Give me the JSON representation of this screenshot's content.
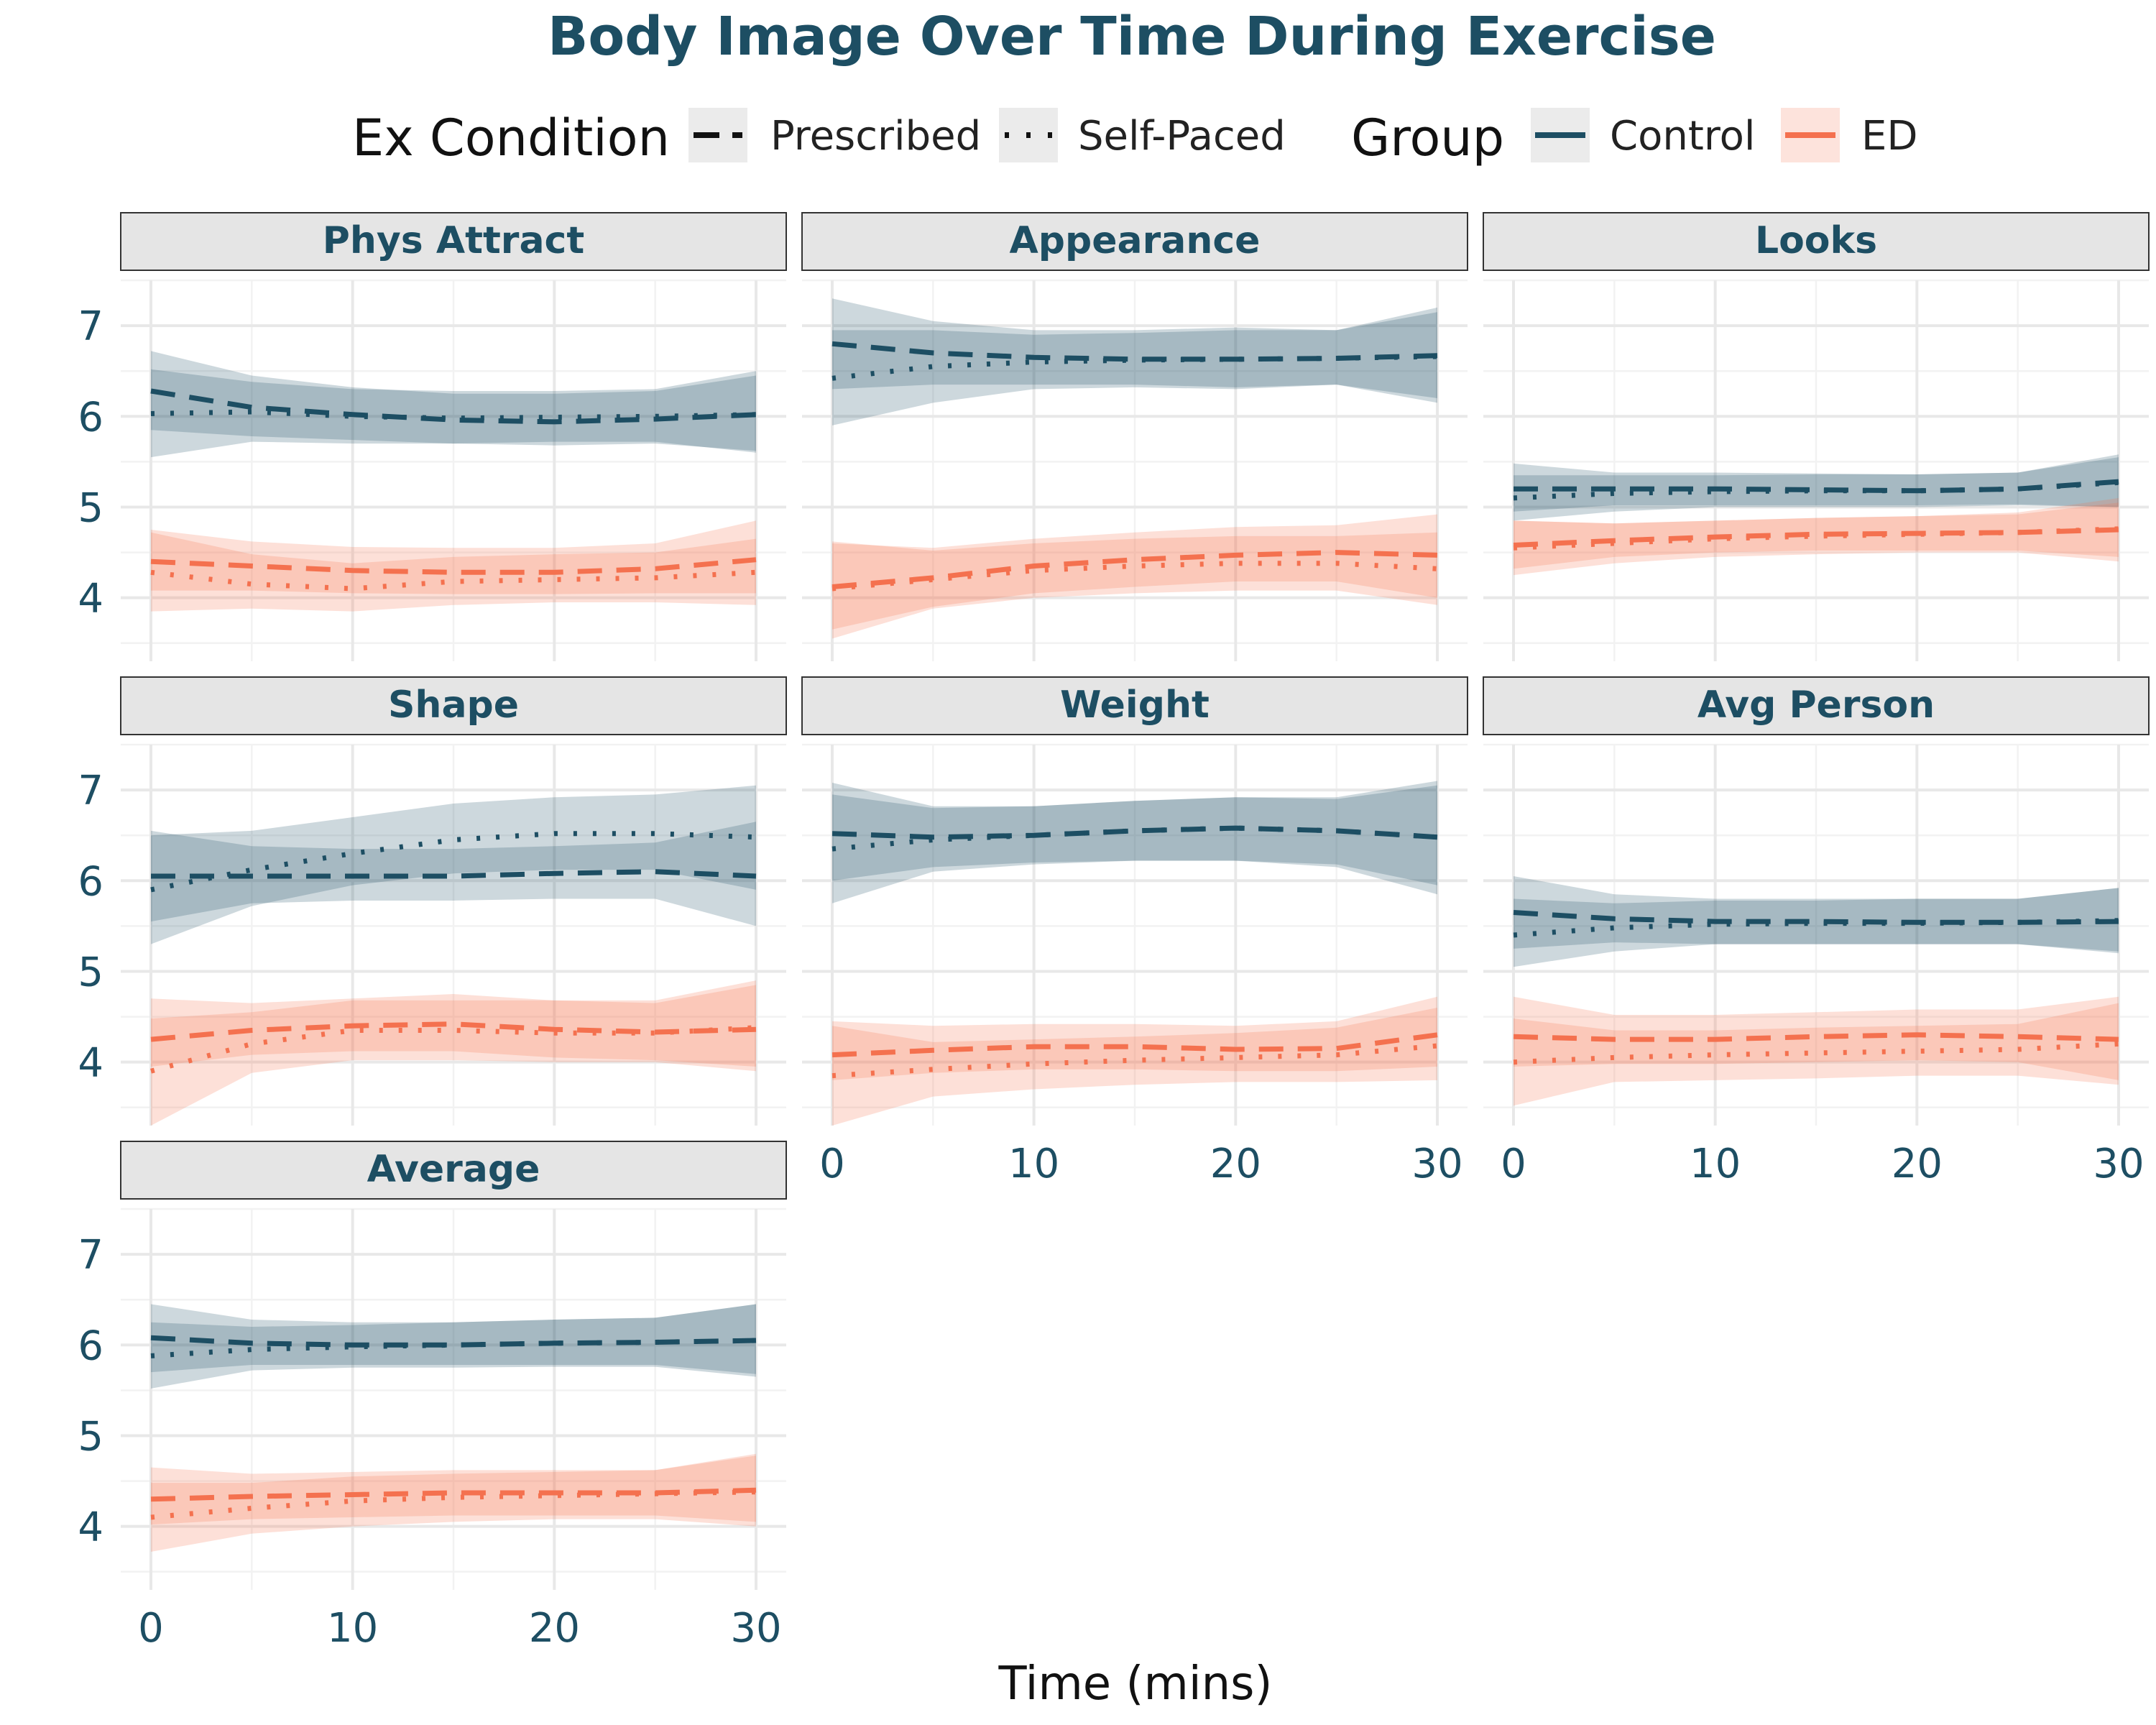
{
  "chart_data": {
    "type": "line",
    "title": "Body Image Over Time During Exercise",
    "xlabel": "Time (mins)",
    "ylabel": "",
    "xlim": [
      0,
      30
    ],
    "ylim": [
      3.3,
      7.5
    ],
    "x_ticks": [
      0,
      10,
      20,
      30
    ],
    "y_ticks": [
      4,
      5,
      6,
      7
    ],
    "x_tick_labels": [
      "0",
      "10",
      "20",
      "30"
    ],
    "y_tick_labels": [
      "4",
      "5",
      "6",
      "7"
    ],
    "grid": true,
    "legend_placement": "top",
    "colors": {
      "Control": "#1d4e63",
      "ED": "#f4714f"
    },
    "legend": {
      "condition": {
        "title": "Ex Condition",
        "items": [
          {
            "label": "Prescribed",
            "line": "dashed"
          },
          {
            "label": "Self-Paced",
            "line": "dotted"
          }
        ]
      },
      "group": {
        "title": "Group",
        "items": [
          {
            "label": "Control",
            "color": "#1d4e63"
          },
          {
            "label": "ED",
            "color": "#f4714f"
          }
        ]
      }
    },
    "x": [
      0,
      5,
      10,
      15,
      20,
      25,
      30
    ],
    "panels": [
      {
        "name": "Phys Attract",
        "series": [
          {
            "group": "Control",
            "condition": "Prescribed",
            "values": [
              6.28,
              6.1,
              6.02,
              5.96,
              5.94,
              5.97,
              6.02
            ],
            "lower": [
              5.85,
              5.78,
              5.74,
              5.7,
              5.68,
              5.7,
              5.62
            ],
            "upper": [
              6.72,
              6.45,
              6.32,
              6.25,
              6.25,
              6.28,
              6.45
            ]
          },
          {
            "group": "Control",
            "condition": "Self-Paced",
            "values": [
              6.03,
              6.05,
              6.0,
              5.98,
              5.99,
              6.0,
              6.02
            ],
            "lower": [
              5.55,
              5.72,
              5.7,
              5.7,
              5.72,
              5.72,
              5.6
            ],
            "upper": [
              6.52,
              6.38,
              6.3,
              6.28,
              6.28,
              6.3,
              6.5
            ]
          },
          {
            "group": "ED",
            "condition": "Prescribed",
            "values": [
              4.4,
              4.35,
              4.3,
              4.28,
              4.28,
              4.32,
              4.42
            ],
            "lower": [
              4.08,
              4.08,
              4.05,
              4.04,
              4.04,
              4.05,
              4.05
            ],
            "upper": [
              4.75,
              4.62,
              4.56,
              4.55,
              4.55,
              4.6,
              4.85
            ]
          },
          {
            "group": "ED",
            "condition": "Self-Paced",
            "values": [
              4.28,
              4.15,
              4.1,
              4.18,
              4.2,
              4.22,
              4.28
            ],
            "lower": [
              3.85,
              3.88,
              3.85,
              3.92,
              3.95,
              3.95,
              3.92
            ],
            "upper": [
              4.72,
              4.48,
              4.38,
              4.45,
              4.48,
              4.5,
              4.65
            ]
          }
        ]
      },
      {
        "name": "Appearance",
        "series": [
          {
            "group": "Control",
            "condition": "Prescribed",
            "values": [
              6.8,
              6.7,
              6.65,
              6.63,
              6.63,
              6.64,
              6.67
            ],
            "lower": [
              6.3,
              6.35,
              6.35,
              6.35,
              6.32,
              6.35,
              6.15
            ],
            "upper": [
              7.3,
              7.05,
              6.95,
              6.95,
              6.98,
              6.95,
              7.2
            ]
          },
          {
            "group": "Control",
            "condition": "Self-Paced",
            "values": [
              6.42,
              6.55,
              6.6,
              6.62,
              6.63,
              6.64,
              6.66
            ],
            "lower": [
              5.9,
              6.15,
              6.3,
              6.32,
              6.3,
              6.35,
              6.2
            ],
            "upper": [
              6.95,
              6.95,
              6.9,
              6.92,
              6.95,
              6.95,
              7.15
            ]
          },
          {
            "group": "ED",
            "condition": "Prescribed",
            "values": [
              4.12,
              4.22,
              4.35,
              4.42,
              4.47,
              4.5,
              4.47
            ],
            "lower": [
              3.65,
              3.9,
              4.05,
              4.12,
              4.18,
              4.18,
              4.0
            ],
            "upper": [
              4.6,
              4.55,
              4.65,
              4.72,
              4.78,
              4.8,
              4.92
            ]
          },
          {
            "group": "ED",
            "condition": "Self-Paced",
            "values": [
              4.1,
              4.2,
              4.3,
              4.35,
              4.38,
              4.38,
              4.32
            ],
            "lower": [
              3.55,
              3.88,
              4.0,
              4.05,
              4.08,
              4.08,
              3.92
            ],
            "upper": [
              4.62,
              4.52,
              4.6,
              4.65,
              4.68,
              4.68,
              4.72
            ]
          }
        ]
      },
      {
        "name": "Looks",
        "series": [
          {
            "group": "Control",
            "condition": "Prescribed",
            "values": [
              5.2,
              5.2,
              5.2,
              5.19,
              5.18,
              5.2,
              5.28
            ],
            "lower": [
              4.95,
              5.02,
              5.02,
              5.02,
              5.02,
              5.03,
              5.0
            ],
            "upper": [
              5.48,
              5.38,
              5.38,
              5.37,
              5.36,
              5.38,
              5.55
            ]
          },
          {
            "group": "Control",
            "condition": "Self-Paced",
            "values": [
              5.1,
              5.15,
              5.17,
              5.18,
              5.18,
              5.2,
              5.27
            ],
            "lower": [
              4.85,
              4.95,
              5.0,
              5.0,
              5.0,
              5.02,
              5.0
            ],
            "upper": [
              5.35,
              5.35,
              5.35,
              5.36,
              5.36,
              5.38,
              5.58
            ]
          },
          {
            "group": "ED",
            "condition": "Prescribed",
            "values": [
              4.58,
              4.63,
              4.67,
              4.7,
              4.71,
              4.72,
              4.75
            ],
            "lower": [
              4.32,
              4.45,
              4.5,
              4.52,
              4.52,
              4.52,
              4.45
            ],
            "upper": [
              4.85,
              4.82,
              4.85,
              4.88,
              4.9,
              4.92,
              5.05
            ]
          },
          {
            "group": "ED",
            "condition": "Self-Paced",
            "values": [
              4.55,
              4.6,
              4.65,
              4.68,
              4.7,
              4.72,
              4.76
            ],
            "lower": [
              4.25,
              4.38,
              4.45,
              4.48,
              4.5,
              4.5,
              4.4
            ],
            "upper": [
              4.85,
              4.82,
              4.85,
              4.88,
              4.9,
              4.94,
              5.1
            ]
          }
        ]
      },
      {
        "name": "Shape",
        "series": [
          {
            "group": "Control",
            "condition": "Prescribed",
            "values": [
              6.05,
              6.05,
              6.05,
              6.05,
              6.08,
              6.1,
              6.05
            ],
            "lower": [
              5.55,
              5.75,
              5.78,
              5.78,
              5.8,
              5.8,
              5.5
            ],
            "upper": [
              6.55,
              6.38,
              6.35,
              6.35,
              6.38,
              6.42,
              6.65
            ]
          },
          {
            "group": "Control",
            "condition": "Self-Paced",
            "values": [
              5.9,
              6.12,
              6.3,
              6.45,
              6.52,
              6.52,
              6.48
            ],
            "lower": [
              5.3,
              5.72,
              5.95,
              6.08,
              6.12,
              6.12,
              5.9
            ],
            "upper": [
              6.5,
              6.55,
              6.7,
              6.85,
              6.92,
              6.95,
              7.05
            ]
          },
          {
            "group": "ED",
            "condition": "Prescribed",
            "values": [
              4.25,
              4.35,
              4.4,
              4.42,
              4.36,
              4.33,
              4.36
            ],
            "lower": [
              3.95,
              4.08,
              4.12,
              4.12,
              4.05,
              4.02,
              3.95
            ],
            "upper": [
              4.7,
              4.65,
              4.7,
              4.75,
              4.68,
              4.65,
              4.85
            ]
          },
          {
            "group": "ED",
            "condition": "Self-Paced",
            "values": [
              3.9,
              4.2,
              4.35,
              4.35,
              4.32,
              4.32,
              4.38
            ],
            "lower": [
              3.3,
              3.88,
              4.02,
              4.02,
              4.0,
              4.0,
              3.9
            ],
            "upper": [
              4.48,
              4.55,
              4.68,
              4.68,
              4.68,
              4.68,
              4.9
            ]
          }
        ]
      },
      {
        "name": "Weight",
        "series": [
          {
            "group": "Control",
            "condition": "Prescribed",
            "values": [
              6.52,
              6.48,
              6.5,
              6.55,
              6.58,
              6.55,
              6.48
            ],
            "lower": [
              6.0,
              6.15,
              6.2,
              6.22,
              6.22,
              6.18,
              5.95
            ],
            "upper": [
              7.08,
              6.82,
              6.82,
              6.88,
              6.92,
              6.9,
              7.05
            ]
          },
          {
            "group": "Control",
            "condition": "Self-Paced",
            "values": [
              6.35,
              6.45,
              6.5,
              6.55,
              6.58,
              6.55,
              6.48
            ],
            "lower": [
              5.75,
              6.1,
              6.18,
              6.22,
              6.22,
              6.15,
              5.85
            ],
            "upper": [
              6.95,
              6.8,
              6.82,
              6.88,
              6.92,
              6.92,
              7.1
            ]
          },
          {
            "group": "ED",
            "condition": "Prescribed",
            "values": [
              4.08,
              4.13,
              4.17,
              4.17,
              4.14,
              4.15,
              4.3
            ],
            "lower": [
              3.8,
              3.88,
              3.92,
              3.92,
              3.9,
              3.9,
              3.95
            ],
            "upper": [
              4.45,
              4.4,
              4.42,
              4.42,
              4.4,
              4.45,
              4.72
            ]
          },
          {
            "group": "ED",
            "condition": "Self-Paced",
            "values": [
              3.85,
              3.92,
              3.98,
              4.02,
              4.05,
              4.08,
              4.18
            ],
            "lower": [
              3.3,
              3.62,
              3.7,
              3.75,
              3.78,
              3.78,
              3.8
            ],
            "upper": [
              4.4,
              4.22,
              4.25,
              4.28,
              4.32,
              4.38,
              4.6
            ]
          }
        ]
      },
      {
        "name": "Avg Person",
        "series": [
          {
            "group": "Control",
            "condition": "Prescribed",
            "values": [
              5.65,
              5.58,
              5.55,
              5.55,
              5.54,
              5.54,
              5.55
            ],
            "lower": [
              5.25,
              5.32,
              5.3,
              5.3,
              5.3,
              5.3,
              5.2
            ],
            "upper": [
              6.05,
              5.85,
              5.8,
              5.8,
              5.8,
              5.8,
              5.92
            ]
          },
          {
            "group": "Control",
            "condition": "Self-Paced",
            "values": [
              5.4,
              5.48,
              5.52,
              5.53,
              5.53,
              5.54,
              5.56
            ],
            "lower": [
              5.05,
              5.22,
              5.3,
              5.3,
              5.3,
              5.3,
              5.22
            ],
            "upper": [
              5.8,
              5.75,
              5.78,
              5.78,
              5.8,
              5.8,
              5.92
            ]
          },
          {
            "group": "ED",
            "condition": "Prescribed",
            "values": [
              4.28,
              4.25,
              4.25,
              4.28,
              4.3,
              4.28,
              4.25
            ],
            "lower": [
              3.95,
              3.98,
              3.98,
              4.0,
              4.02,
              4.0,
              3.8
            ],
            "upper": [
              4.72,
              4.52,
              4.52,
              4.55,
              4.58,
              4.58,
              4.72
            ]
          },
          {
            "group": "ED",
            "condition": "Self-Paced",
            "values": [
              4.0,
              4.05,
              4.08,
              4.1,
              4.12,
              4.14,
              4.2
            ],
            "lower": [
              3.52,
              3.78,
              3.8,
              3.82,
              3.85,
              3.85,
              3.75
            ],
            "upper": [
              4.48,
              4.35,
              4.35,
              4.38,
              4.4,
              4.42,
              4.65
            ]
          }
        ]
      },
      {
        "name": "Average",
        "series": [
          {
            "group": "Control",
            "condition": "Prescribed",
            "values": [
              6.08,
              6.02,
              6.0,
              6.0,
              6.02,
              6.03,
              6.05
            ],
            "lower": [
              5.7,
              5.78,
              5.78,
              5.78,
              5.78,
              5.78,
              5.68
            ],
            "upper": [
              6.45,
              6.28,
              6.25,
              6.25,
              6.28,
              6.3,
              6.45
            ]
          },
          {
            "group": "Control",
            "condition": "Self-Paced",
            "values": [
              5.88,
              5.95,
              5.98,
              6.0,
              6.02,
              6.03,
              6.05
            ],
            "lower": [
              5.52,
              5.72,
              5.75,
              5.75,
              5.76,
              5.76,
              5.65
            ],
            "upper": [
              6.25,
              6.2,
              6.22,
              6.25,
              6.28,
              6.3,
              6.45
            ]
          },
          {
            "group": "ED",
            "condition": "Prescribed",
            "values": [
              4.3,
              4.33,
              4.35,
              4.37,
              4.37,
              4.37,
              4.4
            ],
            "lower": [
              4.02,
              4.08,
              4.1,
              4.12,
              4.12,
              4.12,
              4.05
            ],
            "upper": [
              4.65,
              4.58,
              4.6,
              4.62,
              4.62,
              4.62,
              4.8
            ]
          },
          {
            "group": "ED",
            "condition": "Self-Paced",
            "values": [
              4.1,
              4.2,
              4.28,
              4.32,
              4.34,
              4.36,
              4.38
            ],
            "lower": [
              3.72,
              3.92,
              4.0,
              4.05,
              4.08,
              4.08,
              4.0
            ],
            "upper": [
              4.48,
              4.48,
              4.55,
              4.58,
              4.6,
              4.62,
              4.78
            ]
          }
        ]
      }
    ]
  }
}
